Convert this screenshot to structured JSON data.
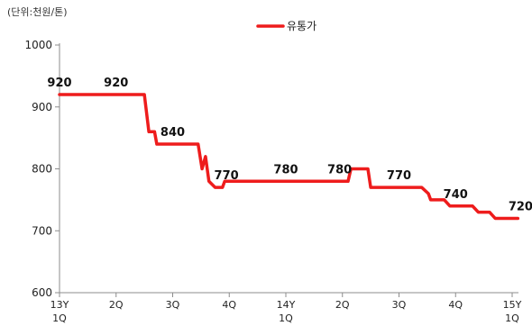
{
  "unit_label": "(단위:천원/톤)",
  "chart_data": {
    "type": "line",
    "legend": "유통가",
    "legend_position": "top-center",
    "series_color": "#ee1c1c",
    "ylim": [
      600,
      1000
    ],
    "y_ticks": [
      600,
      700,
      800,
      900,
      1000
    ],
    "grid": false,
    "x_ticks": [
      {
        "pos": 0,
        "line1": "13Y",
        "line2": "1Q"
      },
      {
        "pos": 1,
        "line1": "2Q",
        "line2": ""
      },
      {
        "pos": 2,
        "line1": "3Q",
        "line2": ""
      },
      {
        "pos": 3,
        "line1": "4Q",
        "line2": ""
      },
      {
        "pos": 4,
        "line1": "14Y",
        "line2": "1Q"
      },
      {
        "pos": 5,
        "line1": "2Q",
        "line2": ""
      },
      {
        "pos": 6,
        "line1": "3Q",
        "line2": ""
      },
      {
        "pos": 7,
        "line1": "4Q",
        "line2": ""
      },
      {
        "pos": 8,
        "line1": "15Y",
        "line2": "1Q"
      }
    ],
    "points": [
      [
        0.0,
        920
      ],
      [
        1.5,
        920
      ],
      [
        1.58,
        860
      ],
      [
        1.68,
        860
      ],
      [
        1.72,
        840
      ],
      [
        2.45,
        840
      ],
      [
        2.52,
        800
      ],
      [
        2.58,
        820
      ],
      [
        2.64,
        780
      ],
      [
        2.75,
        770
      ],
      [
        2.88,
        770
      ],
      [
        2.92,
        780
      ],
      [
        5.1,
        780
      ],
      [
        5.15,
        800
      ],
      [
        5.45,
        800
      ],
      [
        5.5,
        770
      ],
      [
        6.4,
        770
      ],
      [
        6.52,
        760
      ],
      [
        6.56,
        750
      ],
      [
        6.8,
        750
      ],
      [
        6.9,
        740
      ],
      [
        7.3,
        740
      ],
      [
        7.4,
        730
      ],
      [
        7.6,
        730
      ],
      [
        7.7,
        720
      ],
      [
        8.1,
        720
      ]
    ],
    "data_labels": [
      {
        "x": 0.0,
        "y": 920,
        "text": "920"
      },
      {
        "x": 1.0,
        "y": 920,
        "text": "920"
      },
      {
        "x": 2.0,
        "y": 840,
        "text": "840"
      },
      {
        "x": 2.95,
        "y": 770,
        "text": "770"
      },
      {
        "x": 4.0,
        "y": 780,
        "text": "780"
      },
      {
        "x": 4.95,
        "y": 780,
        "text": "780"
      },
      {
        "x": 6.0,
        "y": 770,
        "text": "770"
      },
      {
        "x": 7.0,
        "y": 740,
        "text": "740"
      },
      {
        "x": 8.15,
        "y": 720,
        "text": "720"
      }
    ]
  }
}
